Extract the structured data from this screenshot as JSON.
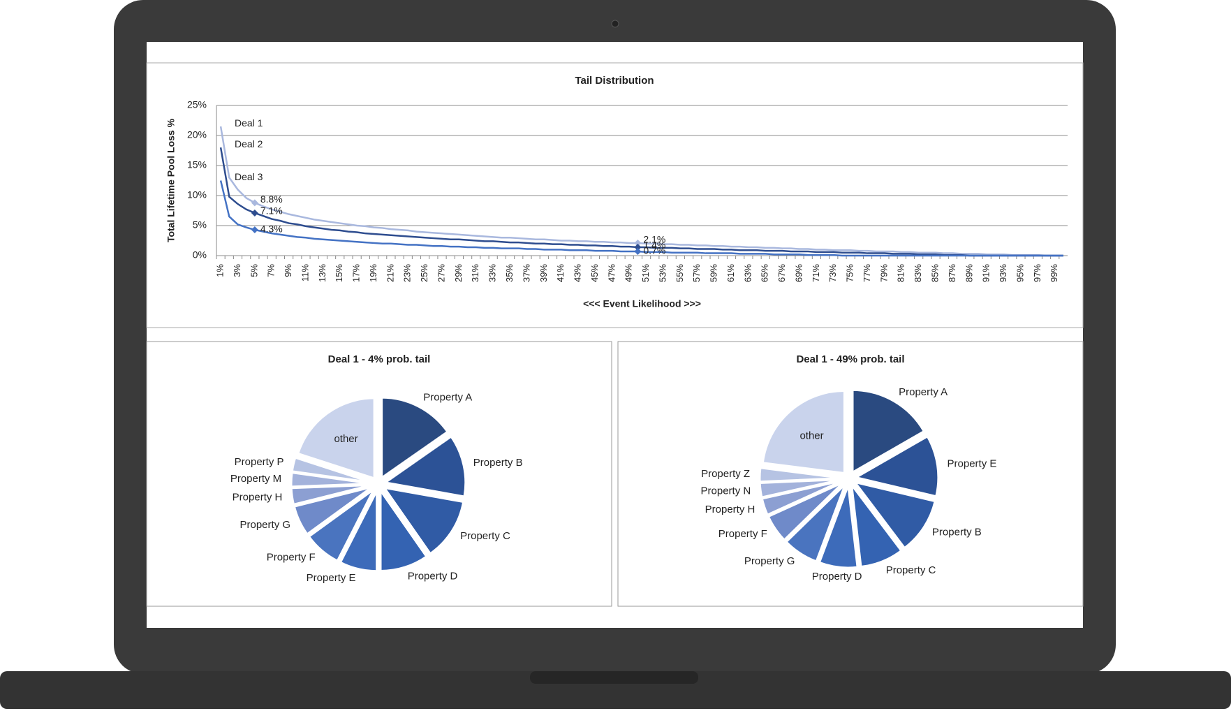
{
  "chart_data": [
    {
      "type": "line",
      "title": "Tail Distribution",
      "y_label": "Total Lifetime Pool Loss %",
      "x_label": "<<< Event Likelihood >>>",
      "categories": [
        "1%",
        null,
        "3%",
        null,
        "5%",
        null,
        "7%",
        null,
        "9%",
        null,
        "11%",
        null,
        "13%",
        null,
        "15%",
        null,
        "17%",
        null,
        "19%",
        null,
        "21%",
        null,
        "23%",
        null,
        "25%",
        null,
        "27%",
        null,
        "29%",
        null,
        "31%",
        null,
        "33%",
        null,
        "35%",
        null,
        "37%",
        null,
        "39%",
        null,
        "41%",
        null,
        "43%",
        null,
        "45%",
        null,
        "47%",
        null,
        "49%",
        null,
        "51%",
        null,
        "53%",
        null,
        "55%",
        null,
        "57%",
        null,
        "59%",
        null,
        "61%",
        null,
        "63%",
        null,
        "65%",
        null,
        "67%",
        null,
        "69%",
        null,
        "71%",
        null,
        "73%",
        null,
        "75%",
        null,
        "77%",
        null,
        "79%",
        null,
        "81%",
        null,
        "83%",
        null,
        "85%",
        null,
        "87%",
        null,
        "89%",
        null,
        "91%",
        null,
        "93%",
        null,
        "95%",
        null,
        "97%",
        null,
        "99%",
        null
      ],
      "ylim": [
        0,
        25
      ],
      "yticks": [
        {
          "value": 0,
          "label": "0%"
        },
        {
          "value": 5,
          "label": "5%"
        },
        {
          "value": 10,
          "label": "10%"
        },
        {
          "value": 15,
          "label": "15%"
        },
        {
          "value": 20,
          "label": "20%"
        },
        {
          "value": 25,
          "label": "25%"
        }
      ],
      "grid": true,
      "series": [
        {
          "name": "Deal 1",
          "color": "#a9b8de",
          "values": [
            21.5,
            13.0,
            11.0,
            9.6,
            8.8,
            8.2,
            7.7,
            7.3,
            6.9,
            6.6,
            6.3,
            6.0,
            5.8,
            5.6,
            5.4,
            5.2,
            5.0,
            4.9,
            4.7,
            4.6,
            4.4,
            4.3,
            4.2,
            4.0,
            3.9,
            3.8,
            3.7,
            3.6,
            3.5,
            3.4,
            3.3,
            3.2,
            3.1,
            3.0,
            3.0,
            2.9,
            2.8,
            2.7,
            2.7,
            2.6,
            2.5,
            2.5,
            2.4,
            2.4,
            2.3,
            2.3,
            2.2,
            2.2,
            2.1,
            2.1,
            2.0,
            2.0,
            1.9,
            1.9,
            1.8,
            1.8,
            1.7,
            1.7,
            1.6,
            1.6,
            1.5,
            1.5,
            1.4,
            1.4,
            1.3,
            1.3,
            1.2,
            1.2,
            1.1,
            1.1,
            1.0,
            1.0,
            0.9,
            0.9,
            0.9,
            0.8,
            0.8,
            0.7,
            0.7,
            0.7,
            0.6,
            0.6,
            0.5,
            0.5,
            0.5,
            0.4,
            0.4,
            0.3,
            0.3,
            0.3,
            0.2,
            0.2,
            0.2,
            0.1,
            0.1,
            0.1,
            0.1,
            0.0,
            0.0,
            0.0
          ],
          "value_labels": [
            null,
            null,
            null,
            null,
            "8.8%",
            null,
            null,
            null,
            null,
            null,
            null,
            null,
            null,
            null,
            null,
            null,
            null,
            null,
            null,
            null,
            null,
            null,
            null,
            null,
            null,
            null,
            null,
            null,
            null,
            null,
            null,
            null,
            null,
            null,
            null,
            null,
            null,
            null,
            null,
            null,
            null,
            null,
            null,
            null,
            null,
            null,
            null,
            null,
            null,
            "2.1%",
            null,
            null,
            null,
            null,
            null,
            null,
            null,
            null,
            null,
            null,
            null,
            null,
            null,
            null,
            null,
            null,
            null,
            null,
            null,
            null,
            null,
            null,
            null,
            null,
            null,
            null,
            null,
            null,
            null,
            null,
            null,
            null,
            null,
            null,
            null,
            null,
            null,
            null,
            null,
            null,
            null,
            null,
            null,
            null,
            null,
            null,
            null,
            null,
            null,
            null
          ]
        },
        {
          "name": "Deal 2",
          "color": "#2e4d8f",
          "values": [
            18.0,
            9.8,
            8.6,
            7.7,
            7.1,
            6.6,
            6.1,
            5.8,
            5.4,
            5.2,
            4.9,
            4.7,
            4.5,
            4.3,
            4.2,
            4.0,
            3.9,
            3.7,
            3.6,
            3.5,
            3.4,
            3.3,
            3.2,
            3.1,
            3.0,
            2.9,
            2.8,
            2.7,
            2.7,
            2.6,
            2.5,
            2.4,
            2.4,
            2.3,
            2.2,
            2.2,
            2.1,
            2.0,
            2.0,
            1.9,
            1.9,
            1.8,
            1.8,
            1.7,
            1.7,
            1.6,
            1.6,
            1.5,
            1.5,
            1.4,
            1.4,
            1.3,
            1.3,
            1.3,
            1.2,
            1.2,
            1.1,
            1.1,
            1.1,
            1.0,
            1.0,
            0.9,
            0.9,
            0.9,
            0.8,
            0.8,
            0.8,
            0.7,
            0.7,
            0.7,
            0.6,
            0.6,
            0.6,
            0.5,
            0.5,
            0.5,
            0.4,
            0.4,
            0.4,
            0.3,
            0.3,
            0.3,
            0.2,
            0.2,
            0.2,
            0.1,
            0.1,
            0.1,
            0.0,
            0.0,
            0.0,
            0.0,
            0.0,
            0.0,
            0.0,
            0.0,
            0.0,
            0.0,
            0.0,
            0.0
          ],
          "value_labels": [
            null,
            null,
            null,
            null,
            "7.1%",
            null,
            null,
            null,
            null,
            null,
            null,
            null,
            null,
            null,
            null,
            null,
            null,
            null,
            null,
            null,
            null,
            null,
            null,
            null,
            null,
            null,
            null,
            null,
            null,
            null,
            null,
            null,
            null,
            null,
            null,
            null,
            null,
            null,
            null,
            null,
            null,
            null,
            null,
            null,
            null,
            null,
            null,
            null,
            null,
            "1.4%",
            null,
            null,
            null,
            null,
            null,
            null,
            null,
            null,
            null,
            null,
            null,
            null,
            null,
            null,
            null,
            null,
            null,
            null,
            null,
            null,
            null,
            null,
            null,
            null,
            null,
            null,
            null,
            null,
            null,
            null,
            null,
            null,
            null,
            null,
            null,
            null,
            null,
            null,
            null,
            null,
            null,
            null,
            null,
            null,
            null,
            null,
            null,
            null,
            null,
            null
          ]
        },
        {
          "name": "Deal 3",
          "color": "#4472c4",
          "values": [
            12.5,
            6.5,
            5.2,
            4.7,
            4.3,
            4.0,
            3.7,
            3.5,
            3.3,
            3.1,
            3.0,
            2.8,
            2.7,
            2.6,
            2.5,
            2.4,
            2.3,
            2.2,
            2.1,
            2.0,
            2.0,
            1.9,
            1.8,
            1.8,
            1.7,
            1.6,
            1.6,
            1.5,
            1.5,
            1.4,
            1.4,
            1.3,
            1.3,
            1.2,
            1.2,
            1.2,
            1.1,
            1.1,
            1.0,
            1.0,
            1.0,
            0.9,
            0.9,
            0.9,
            0.8,
            0.8,
            0.8,
            0.7,
            0.7,
            0.7,
            0.6,
            0.6,
            0.6,
            0.5,
            0.5,
            0.5,
            0.5,
            0.4,
            0.4,
            0.4,
            0.4,
            0.3,
            0.3,
            0.3,
            0.3,
            0.2,
            0.2,
            0.2,
            0.2,
            0.1,
            0.1,
            0.1,
            0.1,
            0.0,
            0.0,
            0.0,
            0.0,
            0.0,
            0.0,
            0.0,
            0.0,
            0.0,
            0.0,
            0.0,
            0.0,
            0.0,
            0.0,
            0.0,
            0.0,
            0.0,
            0.0,
            0.0,
            0.0,
            0.0,
            0.0,
            0.0,
            0.0,
            0.0,
            0.0,
            0.0
          ],
          "value_labels": [
            null,
            null,
            null,
            null,
            "4.3%",
            null,
            null,
            null,
            null,
            null,
            null,
            null,
            null,
            null,
            null,
            null,
            null,
            null,
            null,
            null,
            null,
            null,
            null,
            null,
            null,
            null,
            null,
            null,
            null,
            null,
            null,
            null,
            null,
            null,
            null,
            null,
            null,
            null,
            null,
            null,
            null,
            null,
            null,
            null,
            null,
            null,
            null,
            null,
            null,
            "0.7%",
            null,
            null,
            null,
            null,
            null,
            null,
            null,
            null,
            null,
            null,
            null,
            null,
            null,
            null,
            null,
            null,
            null,
            null,
            null,
            null,
            null,
            null,
            null,
            null,
            null,
            null,
            null,
            null,
            null,
            null,
            null,
            null,
            null,
            null,
            null,
            null,
            null,
            null,
            null,
            null,
            null,
            null,
            null,
            null,
            null,
            null,
            null,
            null,
            null,
            null
          ]
        }
      ]
    },
    {
      "type": "pie",
      "title": "Deal 1 - 4% prob. tail",
      "categories": [
        "Property A",
        "Property B",
        "Property C",
        "Property D",
        "Property E",
        "Property F",
        "Property G",
        "Property H",
        "Property M",
        "Property P",
        "other"
      ],
      "values": [
        15.3,
        12.5,
        12.5,
        9.7,
        7.5,
        7.5,
        6.1,
        3.3,
        2.8,
        2.8,
        20.0
      ],
      "colors": [
        "#2a4a80",
        "#2c5296",
        "#305ba5",
        "#3463b2",
        "#3d6bba",
        "#4a74bf",
        "#6f8ac9",
        "#8c9fd2",
        "#a3b2db",
        "#b6c3e3",
        "#c9d3ec"
      ]
    },
    {
      "type": "pie",
      "title": "Deal 1 - 49% prob. tail",
      "categories": [
        "Property A",
        "Property E",
        "Property B",
        "Property C",
        "Property D",
        "Property G",
        "Property F",
        "Property H",
        "Property N",
        "Property Z",
        "other"
      ],
      "values": [
        16.7,
        12.0,
        11.0,
        8.5,
        7.5,
        7.0,
        5.5,
        3.3,
        2.8,
        2.7,
        23.0
      ],
      "colors": [
        "#2a4a80",
        "#2c5296",
        "#305ba5",
        "#3463b2",
        "#3d6bba",
        "#4a74bf",
        "#6f8ac9",
        "#8c9fd2",
        "#a3b2db",
        "#b6c3e3",
        "#c9d3ec"
      ]
    }
  ]
}
